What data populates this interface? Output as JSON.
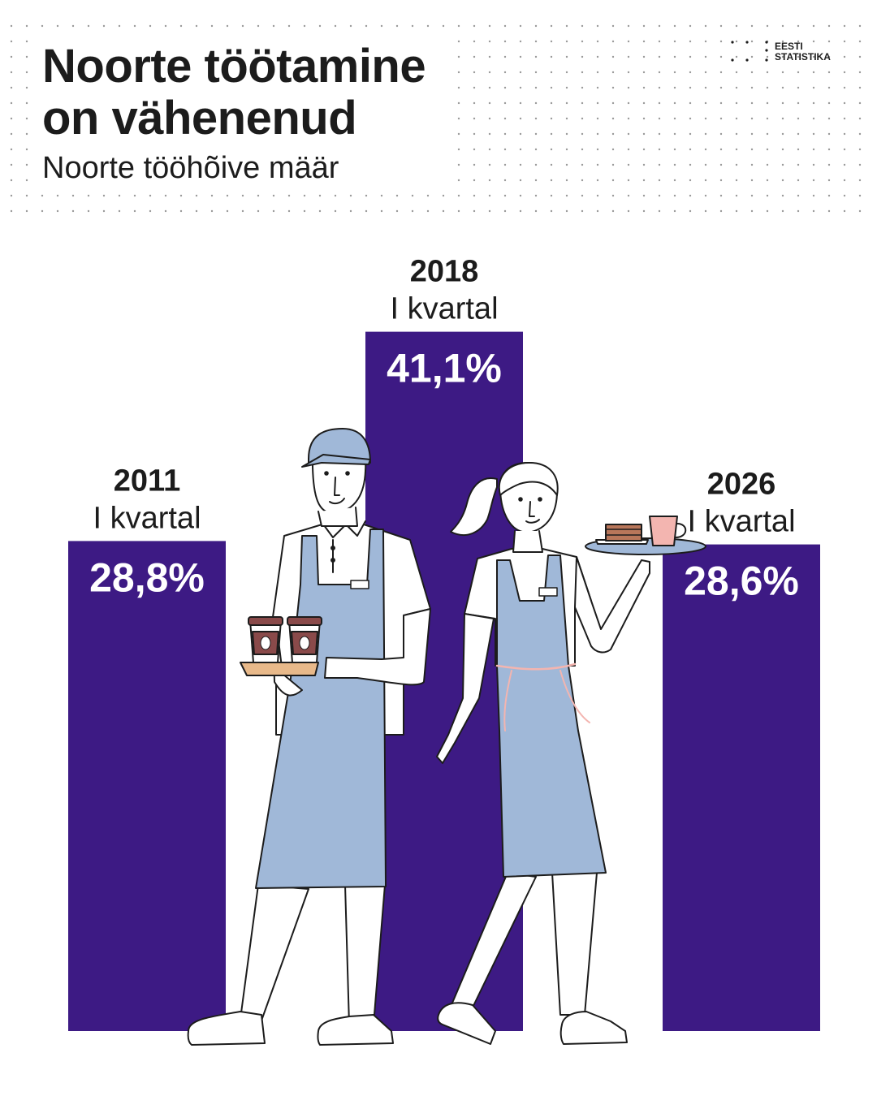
{
  "header": {
    "title": "Noorte töötamine\non vähenenud",
    "subtitle": "Noorte tööhõive määr",
    "logo_text": "EESTI\nSTATISTIKA"
  },
  "colors": {
    "bar": "#3d1a84",
    "apron": "#a0b8d8",
    "text": "#1c1c1c",
    "value_text": "#ffffff",
    "cup": "#8a4a4a",
    "tray_man": "#e8b98a",
    "mug": "#f3b5b0",
    "cake": "#b8765a"
  },
  "chart_data": {
    "type": "bar",
    "title": "Noorte tööhõive määr",
    "categories": [
      "2011\nI kvartal",
      "2018\nI kvartal",
      "2026\nI kvartal"
    ],
    "series": [
      {
        "values": [
          28.8,
          41.1,
          28.6
        ],
        "labels": [
          "28,8%",
          "41,1%",
          "28,6%"
        ]
      }
    ],
    "ylim": [
      0,
      48
    ],
    "grid": false,
    "xlabel": "",
    "ylabel": ""
  }
}
